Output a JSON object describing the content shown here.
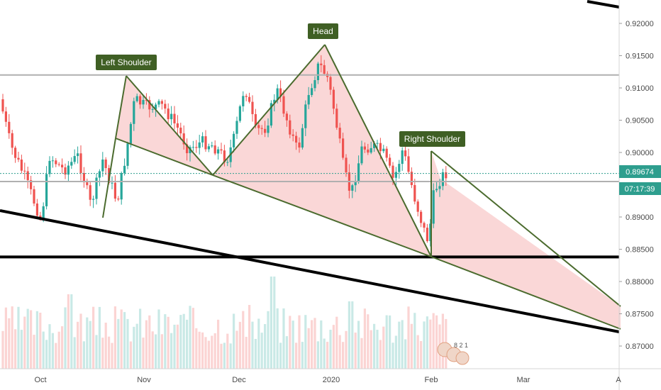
{
  "chart_data": {
    "type": "candlestick",
    "y_ticks": [
      "0.92000",
      "0.91500",
      "0.91000",
      "0.90500",
      "0.90000",
      "0.89500",
      "0.89000",
      "0.88500",
      "0.88000",
      "0.87500",
      "0.87000"
    ],
    "y_tick_values": [
      0.92,
      0.915,
      0.91,
      0.905,
      0.9,
      0.895,
      0.89,
      0.885,
      0.88,
      0.875,
      0.87
    ],
    "x_ticks": [
      "Oct",
      "Nov",
      "Dec",
      "2020",
      "Feb",
      "Mar",
      "A"
    ],
    "ylim": [
      0.8667,
      0.9235
    ],
    "annotations": {
      "left_shoulder": "Left Shoulder",
      "head": "Head",
      "right_shoulder": "Right Shoulder"
    },
    "current_price": "0.89674",
    "countdown": "07:17:39",
    "horizontal_levels": [
      0.912,
      0.8955,
      0.8838
    ],
    "colors": {
      "up": "#26a69a",
      "down": "#ef5350",
      "pattern_line": "#4b6b2e",
      "pattern_fill": "#f8c9c9",
      "tag_bg": "#3f5f24",
      "price_tag": "#2e9e8e",
      "level_line": "#b0b0b0",
      "support_line": "#000000"
    },
    "overlay_badge": "8 2 1"
  }
}
